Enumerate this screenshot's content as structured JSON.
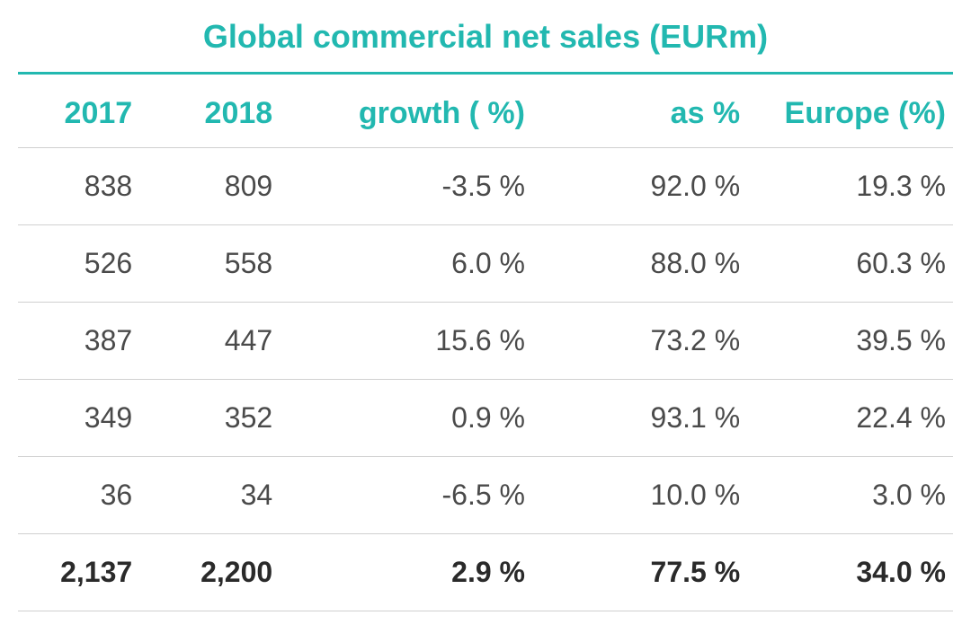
{
  "title": "Global commercial net sales (EURm)",
  "header_color": "#22b8b0",
  "header_fontsize": 34,
  "title_fontsize": 36,
  "body_color": "#4a4a4a",
  "body_fontsize": 32,
  "total_color": "#2a2a2a",
  "row_border_color": "#d0d0d0",
  "title_rule_color": "#22b8b0",
  "columns": [
    "2017",
    "2018",
    "growth ( %)",
    "as  %",
    "Europe (%)"
  ],
  "rows": [
    [
      "838",
      "809",
      "-3.5 %",
      "92.0 %",
      "19.3 %"
    ],
    [
      "526",
      "558",
      "6.0 %",
      "88.0 %",
      "60.3 %"
    ],
    [
      "387",
      "447",
      "15.6 %",
      "73.2 %",
      "39.5 %"
    ],
    [
      "349",
      "352",
      "0.9 %",
      "93.1 %",
      "22.4 %"
    ],
    [
      "36",
      "34",
      "-6.5 %",
      "10.0 %",
      "3.0 %"
    ]
  ],
  "total_row": [
    "2,137",
    "2,200",
    "2.9 %",
    "77.5 %",
    "34.0 %"
  ]
}
